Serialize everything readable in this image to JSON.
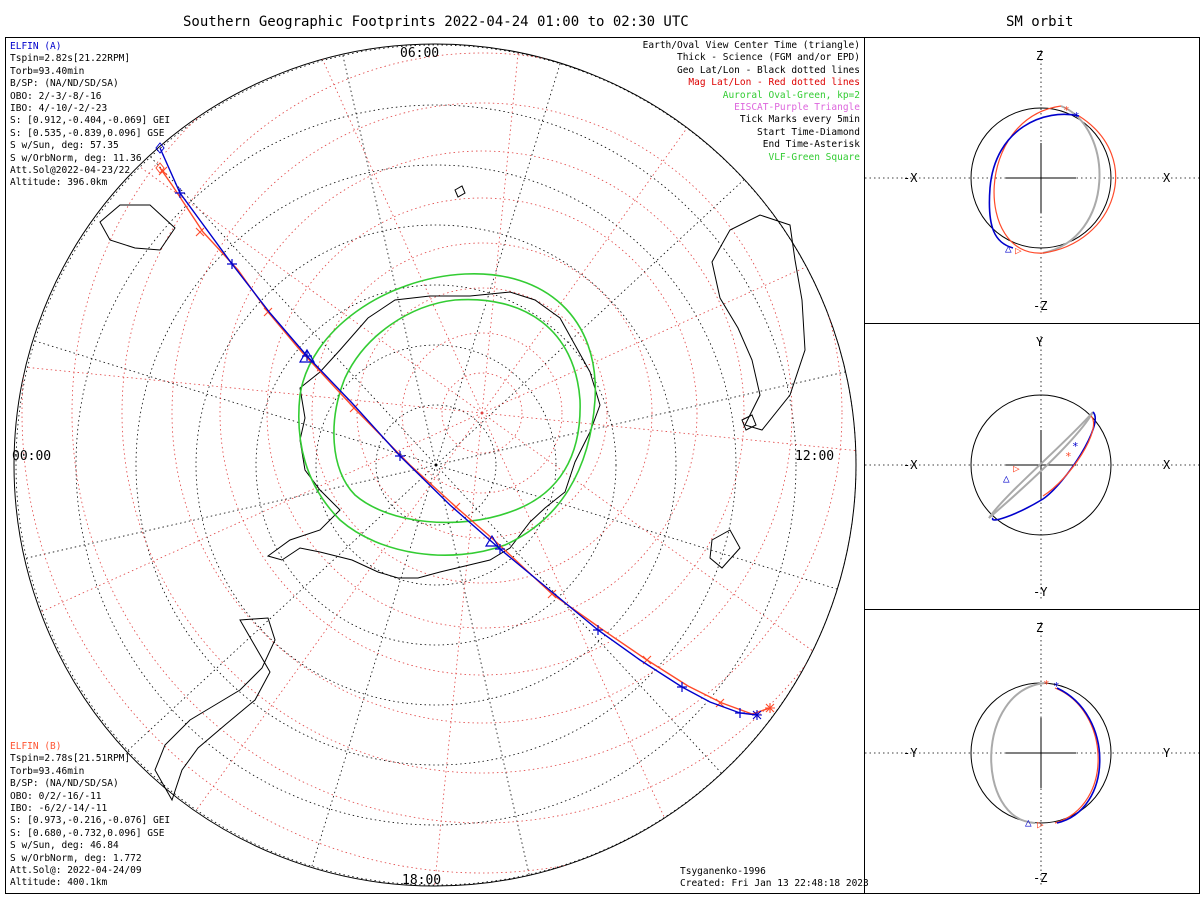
{
  "main_title": "Southern Geographic Footprints 2022-04-24 01:00 to 02:30 UTC",
  "side_title": "SM orbit",
  "colors": {
    "a": "#0000cc",
    "b": "#ff4a2a",
    "aurora": "#33cc33",
    "grid": "#e04040",
    "geo": "#000000",
    "orbit_grey": "#aaaaaa"
  },
  "elfin_a": {
    "name": "ELFIN (A)",
    "lines": [
      "Tspin=2.82s[21.22RPM]",
      "Torb=93.40min",
      "B/SP: (NA/ND/SD/SA)",
      "OBO: 2/-3/-8/-16",
      "IBO: 4/-10/-2/-23",
      "S: [0.912,-0.404,-0.069] GEI",
      "S: [0.535,-0.839,0.096] GSE",
      "S w/Sun, deg: 57.35",
      "S w/OrbNorm, deg: 11.36",
      "Att.Sol@2022-04-23/22",
      "Altitude: 396.0km"
    ]
  },
  "elfin_b": {
    "name": "ELFIN (B)",
    "lines": [
      "Tspin=2.78s[21.51RPM]",
      "Torb=93.46min",
      "B/SP: (NA/ND/SD/SA)",
      "OBO: 0/2/-16/-11",
      "IBO: -6/2/-14/-11",
      "S: [0.973,-0.216,-0.076] GEI",
      "S: [0.680,-0.732,0.096] GSE",
      "S w/Sun, deg: 46.84",
      "S w/OrbNorm, deg: 1.772",
      "Att.Sol@: 2022-04-24/09",
      "Altitude: 400.1km"
    ]
  },
  "legend": [
    {
      "text": "Earth/Oval View Center Time (triangle)",
      "color": "#000000"
    },
    {
      "text": "Thick - Science (FGM and/or EPD)",
      "color": "#000000"
    },
    {
      "text": "Geo Lat/Lon - Black dotted lines",
      "color": "#000000"
    },
    {
      "text": "Mag Lat/Lon - Red dotted lines",
      "color": "#dd0000"
    },
    {
      "text": "Auroral Oval-Green, kp=2",
      "color": "#33cc33"
    },
    {
      "text": "EISCAT-Purple Triangle",
      "color": "#dd66dd"
    },
    {
      "text": "Tick Marks every 5min",
      "color": "#000000"
    },
    {
      "text": "Start Time-Diamond",
      "color": "#000000"
    },
    {
      "text": "End Time-Asterisk",
      "color": "#000000"
    },
    {
      "text": "VLF-Green Square",
      "color": "#33cc33"
    }
  ],
  "footer": {
    "model": "Tsyganenko-1996",
    "created": "Created: Fri Jan 13 22:48:18 2023"
  },
  "chart_data": [
    {
      "type": "polar-map",
      "title": "Southern Geographic Footprints 2022-04-24 01:00 to 02:30 UTC",
      "hour_labels": {
        "top": "06:00",
        "left": "00:00",
        "right": "12:00",
        "bottom": "18:00"
      },
      "series": [
        {
          "name": "ELFIN (A)",
          "track": [
            [
              160,
              148
            ],
            [
              180,
              193
            ],
            [
              232,
              264
            ],
            [
              270,
              313
            ],
            [
              307,
              356
            ],
            [
              352,
              403
            ],
            [
              400,
              456
            ],
            [
              450,
              505
            ],
            [
              500,
              549
            ],
            [
              552,
              592
            ],
            [
              598,
              630
            ],
            [
              640,
              660
            ],
            [
              682,
              687
            ],
            [
              710,
              702
            ],
            [
              740,
              713
            ],
            [
              757,
              715
            ]
          ],
          "ticks": [
            [
              180,
              193
            ],
            [
              232,
              264
            ],
            [
              307,
              356
            ],
            [
              400,
              456
            ],
            [
              500,
              549
            ],
            [
              598,
              630
            ],
            [
              682,
              687
            ],
            [
              740,
              713
            ]
          ]
        },
        {
          "name": "ELFIN (B)",
          "track": [
            [
              160,
              168
            ],
            [
              172,
              185
            ],
            [
              203,
              232
            ],
            [
              238,
              270
            ],
            [
              268,
              312
            ],
            [
              300,
              350
            ],
            [
              356,
              410
            ],
            [
              410,
              465
            ],
            [
              456,
              507
            ],
            [
              494,
              540
            ],
            [
              552,
              594
            ],
            [
              603,
              630
            ],
            [
              647,
              660
            ],
            [
              688,
              686
            ],
            [
              722,
              703
            ],
            [
              752,
              714
            ],
            [
              770,
              708
            ]
          ],
          "ticks": [
            [
              163,
              171
            ],
            [
              200,
              232
            ],
            [
              268,
              312
            ],
            [
              354,
              408
            ],
            [
              456,
              507
            ],
            [
              552,
              594
            ],
            [
              647,
              660
            ],
            [
              720,
              703
            ]
          ]
        }
      ],
      "markers": {
        "triangle_a": [
          307,
          357
        ],
        "triangle_b": [
          492,
          542
        ]
      },
      "aurora_ovals": [
        {
          "name": "outer",
          "kp": 2
        },
        {
          "name": "inner",
          "kp": 2
        }
      ]
    },
    {
      "type": "scatter",
      "title": "SM orbit",
      "xlabel": "X",
      "ylabel": "Z",
      "axis_labels": [
        "Z",
        "-X",
        "X",
        "-Z"
      ]
    },
    {
      "type": "scatter",
      "title": "",
      "xlabel": "X",
      "ylabel": "Y",
      "axis_labels": [
        "Y",
        "-X",
        "X",
        "-Y"
      ]
    },
    {
      "type": "scatter",
      "title": "",
      "xlabel": "Y",
      "ylabel": "Z",
      "axis_labels": [
        "Z",
        "-Y",
        "Y",
        "-Z"
      ]
    }
  ]
}
